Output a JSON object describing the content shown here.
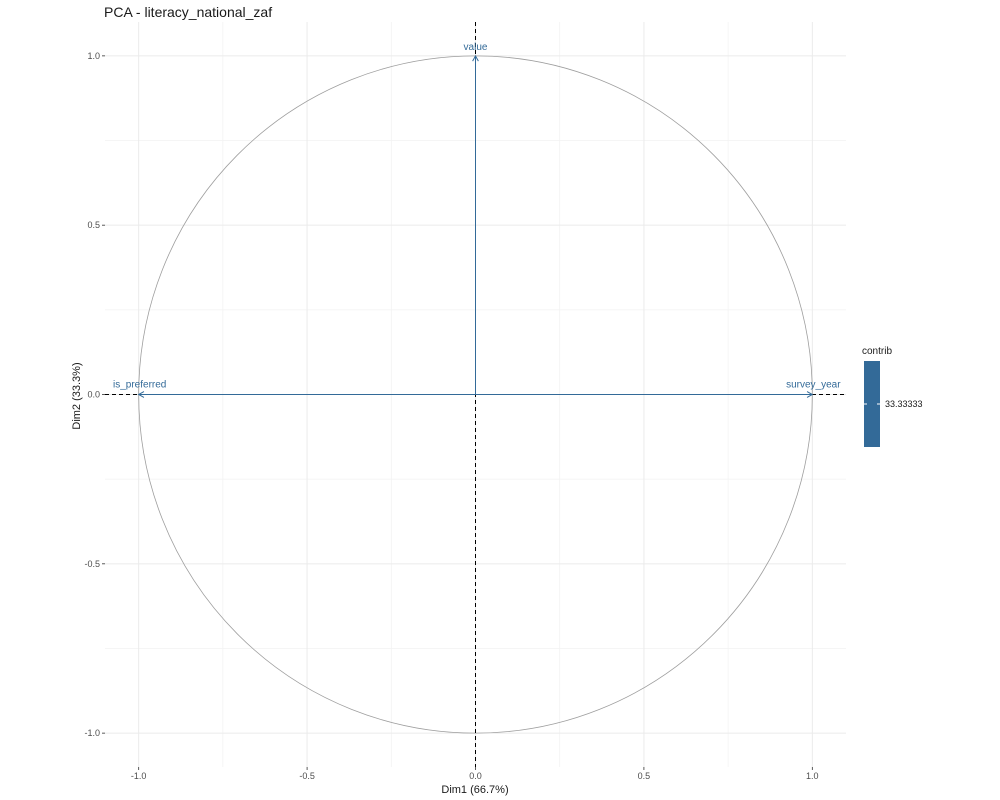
{
  "chart_data": {
    "type": "scatter",
    "title": "PCA - literacy_national_zaf",
    "xlabel": "Dim1 (66.7%)",
    "ylabel": "Dim2 (33.3%)",
    "xlim": [
      -1.1,
      1.1
    ],
    "ylim": [
      -1.1,
      1.1
    ],
    "x_ticks": [
      -1.0,
      -0.5,
      0.0,
      0.5,
      1.0
    ],
    "x_tick_labels": [
      "-1.0",
      "-0.5",
      "0.0",
      "0.5",
      "1.0"
    ],
    "y_ticks": [
      -1.0,
      -0.5,
      0.0,
      0.5,
      1.0
    ],
    "y_tick_labels": [
      "-1.0",
      "-0.5",
      "0.0",
      "0.5",
      "1.0"
    ],
    "grid": true,
    "correlation_circle": true,
    "arrow_color": "#336a98",
    "variables": [
      {
        "name": "survey_year",
        "x": 1.0,
        "y": 0.0,
        "contrib": 33.33333
      },
      {
        "name": "is_preferred",
        "x": -1.0,
        "y": 0.0,
        "contrib": 33.33333
      },
      {
        "name": "value",
        "x": 0.0,
        "y": 1.0,
        "contrib": 33.33333
      }
    ],
    "legend": {
      "title": "contrib",
      "placement": "right",
      "labels": [
        "33.33333"
      ],
      "color": "#336a98"
    }
  }
}
